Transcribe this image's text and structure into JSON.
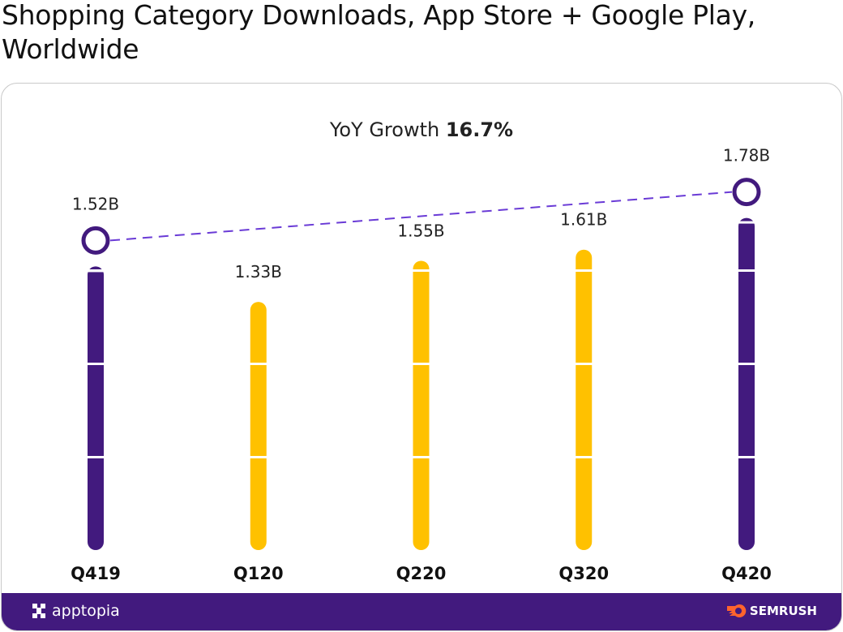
{
  "title": "Shopping Category Downloads, App Store + Google Play, Worldwide",
  "chart_data": {
    "type": "bar",
    "title": "Shopping Category Downloads, App Store + Google Play, Worldwide",
    "subtitle_label": "YoY Growth",
    "subtitle_value": "16.7%",
    "categories": [
      "Q419",
      "Q120",
      "Q220",
      "Q320",
      "Q420"
    ],
    "values": [
      1.52,
      1.33,
      1.55,
      1.61,
      1.78
    ],
    "value_labels": [
      "1.52B",
      "1.33B",
      "1.55B",
      "1.61B",
      "1.78B"
    ],
    "unit": "B downloads",
    "highlighted": [
      true,
      false,
      false,
      false,
      true
    ],
    "gridlines": [
      0.5,
      1.0,
      1.5
    ],
    "ylim": [
      0,
      1.8
    ],
    "colors": {
      "highlight": "#421a7e",
      "normal": "#ffc100",
      "trend_line": "#6a3bd6"
    }
  },
  "footer": {
    "left_brand": "apptopia",
    "right_brand": "SEMRUSH"
  }
}
